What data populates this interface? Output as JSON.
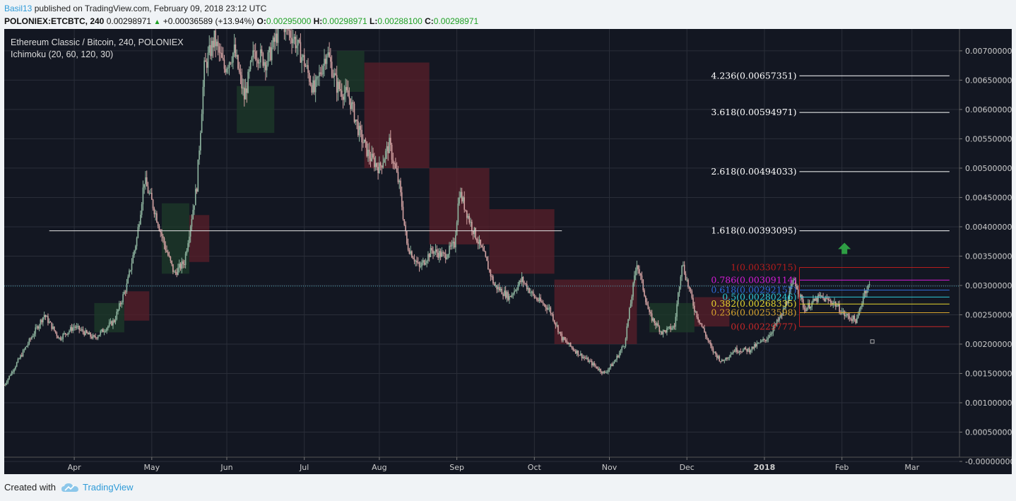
{
  "header": {
    "user": "Basil13",
    "published_text": "published on TradingView.com, February 09, 2018 23:12 UTC"
  },
  "quote": {
    "symbol": "POLONIEX:ETCBTC, 240",
    "price": "0.00298971",
    "change": "+0.00036589 (+13.94%)",
    "o_label": "O:",
    "o": "0.00295000",
    "h_label": "H:",
    "h": "0.00298971",
    "l_label": "L:",
    "l": "0.00288100",
    "c_label": "C:",
    "c": "0.00298971"
  },
  "footer": {
    "created_with": "Created with",
    "brand": "TradingView"
  },
  "colors": {
    "background": "#131722",
    "grid": "#2a2e39",
    "candle_up": "#8fb6a0",
    "candle_down": "#d4a3a3",
    "cloud_bear": "#5a1f2a",
    "cloud_bull": "#1d3b2a",
    "axis_text": "#cccccc",
    "fib_1": "#b71c1c",
    "fib_0786": "#d81bd8",
    "fib_0618": "#2e6bd8",
    "fib_05": "#2ec9d8",
    "fib_0382": "#e6d52e",
    "fib_0236": "#d8a52e",
    "fib_0": "#c62828",
    "fib_ext": "#ffffff",
    "arrow": "#2e9e44"
  },
  "chart_data": {
    "type": "candlestick",
    "title": "Ethereum Classic / Bitcoin, 240, POLONIEX",
    "indicator": "Ichimoku (20, 60, 120, 30)",
    "ylim": [
      0.0,
      0.0073
    ],
    "y_ticks": [
      "0.00700000",
      "0.00650000",
      "0.00600000",
      "0.00550000",
      "0.00500000",
      "0.00450000",
      "0.00400000",
      "0.00350000",
      "0.00300000",
      "0.00250000",
      "0.00200000",
      "0.00150000",
      "0.00100000",
      "0.00050000",
      "-0.00000000"
    ],
    "x_ticks": [
      "Apr",
      "May",
      "Jun",
      "Jul",
      "Aug",
      "Sep",
      "Oct",
      "Nov",
      "Dec",
      "2018",
      "Feb",
      "Mar"
    ],
    "x_tick_days": [
      20,
      51,
      81,
      112,
      142,
      173,
      204,
      234,
      265,
      296,
      327,
      355
    ],
    "x_range_days": [
      -8,
      374
    ],
    "price_path": [
      [
        -8,
        0.0013
      ],
      [
        0,
        0.0019
      ],
      [
        8,
        0.0025
      ],
      [
        14,
        0.0021
      ],
      [
        20,
        0.0023
      ],
      [
        28,
        0.0021
      ],
      [
        36,
        0.0024
      ],
      [
        41,
        0.003
      ],
      [
        45,
        0.0038
      ],
      [
        48,
        0.0048
      ],
      [
        52,
        0.0043
      ],
      [
        56,
        0.0037
      ],
      [
        60,
        0.0032
      ],
      [
        64,
        0.0034
      ],
      [
        69,
        0.0047
      ],
      [
        72,
        0.0067
      ],
      [
        76,
        0.0072
      ],
      [
        80,
        0.0067
      ],
      [
        84,
        0.007
      ],
      [
        88,
        0.0062
      ],
      [
        92,
        0.007
      ],
      [
        97,
        0.0068
      ],
      [
        103,
        0.0075
      ],
      [
        108,
        0.0072
      ],
      [
        112,
        0.0068
      ],
      [
        116,
        0.0063
      ],
      [
        121,
        0.007
      ],
      [
        125,
        0.0064
      ],
      [
        130,
        0.0062
      ],
      [
        134,
        0.0056
      ],
      [
        138,
        0.0052
      ],
      [
        142,
        0.005
      ],
      [
        146,
        0.0054
      ],
      [
        150,
        0.0047
      ],
      [
        153,
        0.0037
      ],
      [
        158,
        0.0033
      ],
      [
        163,
        0.0036
      ],
      [
        168,
        0.0035
      ],
      [
        172,
        0.0037
      ],
      [
        174,
        0.0046
      ],
      [
        179,
        0.004
      ],
      [
        184,
        0.0035
      ],
      [
        188,
        0.003
      ],
      [
        194,
        0.0028
      ],
      [
        199,
        0.0031
      ],
      [
        204,
        0.0028
      ],
      [
        210,
        0.0026
      ],
      [
        215,
        0.0021
      ],
      [
        220,
        0.0019
      ],
      [
        226,
        0.0017
      ],
      [
        232,
        0.0015
      ],
      [
        236,
        0.0017
      ],
      [
        240,
        0.002
      ],
      [
        245,
        0.0034
      ],
      [
        250,
        0.0025
      ],
      [
        255,
        0.0022
      ],
      [
        260,
        0.0023
      ],
      [
        263,
        0.0034
      ],
      [
        268,
        0.0026
      ],
      [
        275,
        0.0019
      ],
      [
        279,
        0.0017
      ],
      [
        284,
        0.0019
      ],
      [
        290,
        0.0019
      ],
      [
        297,
        0.0021
      ],
      [
        303,
        0.0025
      ],
      [
        308,
        0.0031
      ],
      [
        312,
        0.0026
      ],
      [
        318,
        0.0028
      ],
      [
        324,
        0.0027
      ],
      [
        328,
        0.0025
      ],
      [
        333,
        0.0024
      ],
      [
        336,
        0.0029
      ],
      [
        338,
        0.003
      ]
    ],
    "cloud_bands": [
      {
        "kind": "bull",
        "from": 28,
        "to": 40,
        "top": 0.0027,
        "bottom": 0.0022
      },
      {
        "kind": "bear",
        "from": 40,
        "to": 50,
        "top": 0.0029,
        "bottom": 0.0024
      },
      {
        "kind": "bull",
        "from": 55,
        "to": 66,
        "top": 0.0044,
        "bottom": 0.0032
      },
      {
        "kind": "bear",
        "from": 66,
        "to": 74,
        "top": 0.0042,
        "bottom": 0.0034
      },
      {
        "kind": "bull",
        "from": 85,
        "to": 100,
        "top": 0.0064,
        "bottom": 0.0056
      },
      {
        "kind": "bull",
        "from": 125,
        "to": 136,
        "top": 0.007,
        "bottom": 0.0063
      },
      {
        "kind": "bear",
        "from": 136,
        "to": 162,
        "top": 0.0068,
        "bottom": 0.005
      },
      {
        "kind": "bear",
        "from": 162,
        "to": 186,
        "top": 0.005,
        "bottom": 0.0037
      },
      {
        "kind": "bear",
        "from": 186,
        "to": 212,
        "top": 0.0043,
        "bottom": 0.0032
      },
      {
        "kind": "bear",
        "from": 212,
        "to": 245,
        "top": 0.0031,
        "bottom": 0.002
      },
      {
        "kind": "bull",
        "from": 250,
        "to": 268,
        "top": 0.0027,
        "bottom": 0.0022
      },
      {
        "kind": "bear",
        "from": 268,
        "to": 282,
        "top": 0.0028,
        "bottom": 0.0023
      }
    ],
    "current_price": 0.00298971,
    "horizontal_line": {
      "value": 0.00393095,
      "from_day": 10,
      "to_day": 215
    },
    "fib_levels": [
      {
        "label": "4.236(0.00657351)",
        "value": 0.00657351,
        "color_key": "fib_ext"
      },
      {
        "label": "3.618(0.00594971)",
        "value": 0.00594971,
        "color_key": "fib_ext"
      },
      {
        "label": "2.618(0.00494033)",
        "value": 0.00494033,
        "color_key": "fib_ext"
      },
      {
        "label": "1.618(0.00393095)",
        "value": 0.00393095,
        "color_key": "fib_ext"
      },
      {
        "label": "1(0.00330715)",
        "value": 0.00330715,
        "color_key": "fib_1"
      },
      {
        "label": "0.786(0.00309114)",
        "value": 0.00309114,
        "color_key": "fib_0786"
      },
      {
        "label": "0.618(0.00292157)",
        "value": 0.00292157,
        "color_key": "fib_0618"
      },
      {
        "label": "0.5(0.00280246)",
        "value": 0.00280246,
        "color_key": "fib_05"
      },
      {
        "label": "0.382(0.00268335)",
        "value": 0.00268335,
        "color_key": "fib_0382"
      },
      {
        "label": "0.236(0.00253598)",
        "value": 0.00253598,
        "color_key": "fib_0236"
      },
      {
        "label": "0(0.00229777)",
        "value": 0.00229777,
        "color_key": "fib_0"
      }
    ],
    "fib_range_days": [
      310,
      370
    ]
  }
}
